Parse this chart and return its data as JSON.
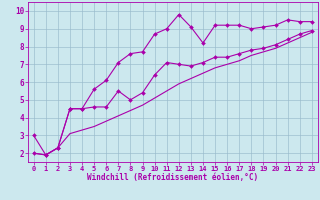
{
  "xlabel": "Windchill (Refroidissement éolien,°C)",
  "bg_color": "#cce8ee",
  "line_color": "#aa00aa",
  "grid_color": "#99bbcc",
  "xlim": [
    -0.5,
    23.5
  ],
  "ylim": [
    1.5,
    10.5
  ],
  "xticks": [
    0,
    1,
    2,
    3,
    4,
    5,
    6,
    7,
    8,
    9,
    10,
    11,
    12,
    13,
    14,
    15,
    16,
    17,
    18,
    19,
    20,
    21,
    22,
    23
  ],
  "yticks": [
    2,
    3,
    4,
    5,
    6,
    7,
    8,
    9,
    10
  ],
  "series1_x": [
    0,
    1,
    2,
    3,
    4,
    5,
    6,
    7,
    8,
    9,
    10,
    11,
    12,
    13,
    14,
    15,
    16,
    17,
    18,
    19,
    20,
    21,
    22,
    23
  ],
  "series1_y": [
    3.0,
    1.9,
    2.3,
    4.5,
    4.5,
    5.6,
    6.1,
    7.1,
    7.6,
    7.7,
    8.7,
    9.0,
    9.8,
    9.1,
    8.2,
    9.2,
    9.2,
    9.2,
    9.0,
    9.1,
    9.2,
    9.5,
    9.4,
    9.4
  ],
  "series2_x": [
    0,
    1,
    2,
    3,
    4,
    5,
    6,
    7,
    8,
    9,
    10,
    11,
    12,
    13,
    14,
    15,
    16,
    17,
    18,
    19,
    20,
    21,
    22,
    23
  ],
  "series2_y": [
    2.0,
    1.9,
    2.3,
    4.5,
    4.5,
    4.6,
    4.6,
    5.5,
    5.0,
    5.4,
    6.4,
    7.1,
    7.0,
    6.9,
    7.1,
    7.4,
    7.4,
    7.6,
    7.8,
    7.9,
    8.1,
    8.4,
    8.7,
    8.9
  ],
  "series3_x": [
    0,
    1,
    2,
    3,
    4,
    5,
    6,
    7,
    8,
    9,
    10,
    11,
    12,
    13,
    14,
    15,
    16,
    17,
    18,
    19,
    20,
    21,
    22,
    23
  ],
  "series3_y": [
    2.0,
    1.9,
    2.3,
    3.1,
    3.3,
    3.5,
    3.8,
    4.1,
    4.4,
    4.7,
    5.1,
    5.5,
    5.9,
    6.2,
    6.5,
    6.8,
    7.0,
    7.2,
    7.5,
    7.7,
    7.9,
    8.2,
    8.5,
    8.8
  ],
  "tick_fontsize": 5.0,
  "xlabel_fontsize": 5.5,
  "marker_size": 2.0
}
